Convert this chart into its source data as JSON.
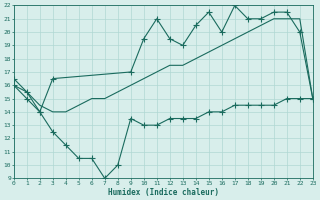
{
  "upper_x": [
    0,
    1,
    2,
    3,
    9,
    10,
    11,
    12,
    13,
    14,
    15,
    16,
    17,
    18,
    19,
    20,
    21,
    22,
    23
  ],
  "upper_y": [
    16.5,
    15.5,
    14.0,
    16.5,
    17.0,
    19.5,
    21.0,
    19.5,
    19.0,
    20.5,
    21.5,
    20.0,
    22.0,
    21.0,
    21.0,
    21.5,
    21.5,
    20.0,
    15.0
  ],
  "trend_x": [
    0,
    1,
    2,
    3,
    4,
    5,
    6,
    7,
    8,
    9,
    10,
    11,
    12,
    13,
    14,
    15,
    16,
    17,
    18,
    19,
    20,
    21,
    22,
    23
  ],
  "trend_y": [
    16.0,
    15.5,
    14.5,
    14.0,
    14.0,
    14.5,
    15.0,
    15.0,
    15.5,
    16.0,
    16.5,
    17.0,
    17.5,
    17.5,
    18.0,
    18.5,
    19.0,
    19.5,
    20.0,
    20.5,
    21.0,
    21.0,
    21.0,
    15.0
  ],
  "lower_x": [
    0,
    1,
    2,
    3,
    4,
    5,
    6,
    7,
    8,
    9,
    10,
    11,
    12,
    13,
    14,
    15,
    16,
    17,
    18,
    19,
    20,
    21,
    22,
    23
  ],
  "lower_y": [
    16.0,
    15.0,
    14.0,
    12.5,
    11.5,
    10.5,
    10.5,
    9.0,
    10.0,
    13.5,
    13.0,
    13.0,
    13.5,
    13.5,
    13.5,
    14.0,
    14.0,
    14.5,
    14.5,
    14.5,
    14.5,
    15.0,
    15.0,
    15.0
  ],
  "line_color": "#1a6b5e",
  "bg_color": "#d8eeeb",
  "grid_color": "#b0d8d4",
  "xlabel": "Humidex (Indice chaleur)",
  "ylim": [
    9,
    22
  ],
  "xlim": [
    0,
    23
  ],
  "yticks": [
    9,
    10,
    11,
    12,
    13,
    14,
    15,
    16,
    17,
    18,
    19,
    20,
    21,
    22
  ],
  "xticks": [
    0,
    1,
    2,
    3,
    4,
    5,
    6,
    7,
    8,
    9,
    10,
    11,
    12,
    13,
    14,
    15,
    16,
    17,
    18,
    19,
    20,
    21,
    22,
    23
  ],
  "marker_size": 2.5,
  "line_width": 0.8
}
